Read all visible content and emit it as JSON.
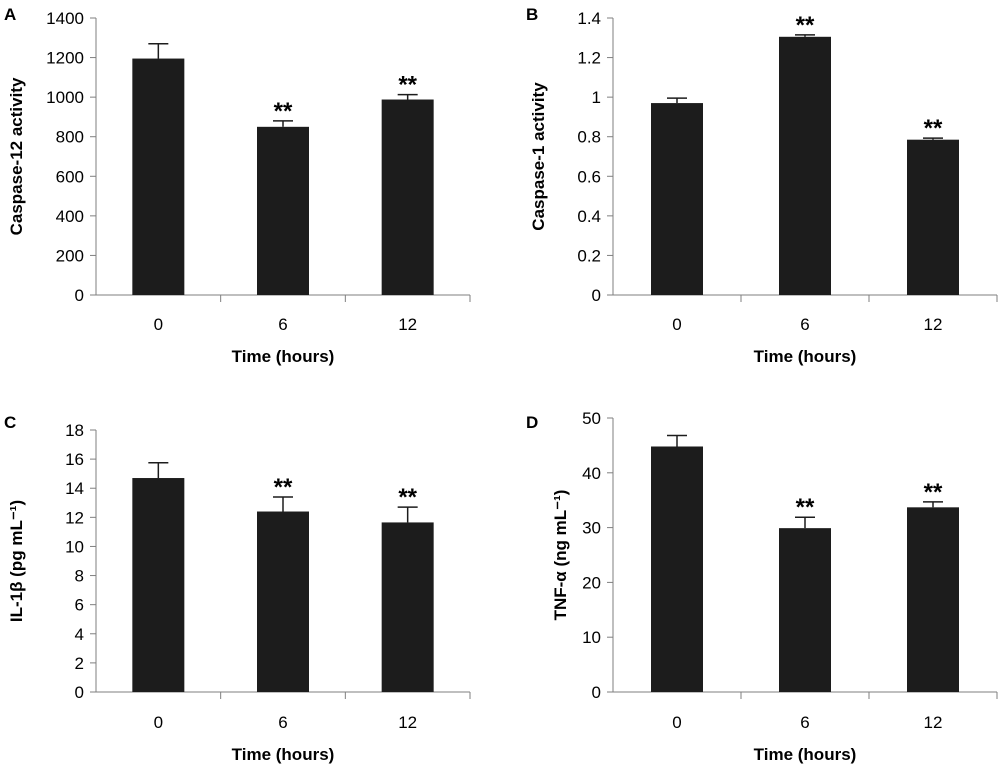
{
  "chart_data": [
    {
      "type": "bar",
      "panel": "A",
      "categories": [
        "0",
        "6",
        "12"
      ],
      "values": [
        1195,
        850,
        988
      ],
      "errors": [
        75,
        30,
        25
      ],
      "significance": [
        "",
        "**",
        "**"
      ],
      "xlabel": "Time (hours)",
      "ylabel": "Caspase-12 activity",
      "ylim": [
        0,
        1400
      ],
      "yticks": [
        0,
        200,
        400,
        600,
        800,
        1000,
        1200,
        1400
      ],
      "ytick_labels": [
        "0",
        "200",
        "400",
        "600",
        "800",
        "1000",
        "1200",
        "1400"
      ]
    },
    {
      "type": "bar",
      "panel": "B",
      "categories": [
        "0",
        "6",
        "12"
      ],
      "values": [
        0.97,
        1.305,
        0.785
      ],
      "errors": [
        0.025,
        0.01,
        0.008
      ],
      "significance": [
        "",
        "**",
        "**"
      ],
      "xlabel": "Time (hours)",
      "ylabel": "Caspase-1 activity",
      "ylim": [
        0,
        1.4
      ],
      "yticks": [
        0,
        0.2,
        0.4,
        0.6,
        0.8,
        1,
        1.2,
        1.4
      ],
      "ytick_labels": [
        "0",
        "0.2",
        "0.4",
        "0.6",
        "0.8",
        "1",
        "1.2",
        "1.4"
      ]
    },
    {
      "type": "bar",
      "panel": "C",
      "categories": [
        "0",
        "6",
        "12"
      ],
      "values": [
        14.7,
        12.4,
        11.65
      ],
      "errors": [
        1.05,
        1.0,
        1.05
      ],
      "significance": [
        "",
        "**",
        "**"
      ],
      "xlabel": "Time (hours)",
      "ylabel": "IL-1β (pg mL⁻¹)",
      "ylim": [
        0,
        18
      ],
      "yticks": [
        0,
        2,
        4,
        6,
        8,
        10,
        12,
        14,
        16,
        18
      ],
      "ytick_labels": [
        "0",
        "2",
        "4",
        "6",
        "8",
        "10",
        "12",
        "14",
        "16",
        "18"
      ]
    },
    {
      "type": "bar",
      "panel": "D",
      "categories": [
        "0",
        "6",
        "12"
      ],
      "values": [
        44.8,
        29.9,
        33.7
      ],
      "errors": [
        2.0,
        2.0,
        1.0
      ],
      "significance": [
        "",
        "**",
        "**"
      ],
      "xlabel": "Time (hours)",
      "ylabel": "TNF-α (ng mL⁻¹)",
      "ylim": [
        0,
        50
      ],
      "yticks": [
        0,
        10,
        20,
        30,
        40,
        50
      ],
      "ytick_labels": [
        "0",
        "10",
        "20",
        "30",
        "40",
        "50"
      ]
    }
  ]
}
